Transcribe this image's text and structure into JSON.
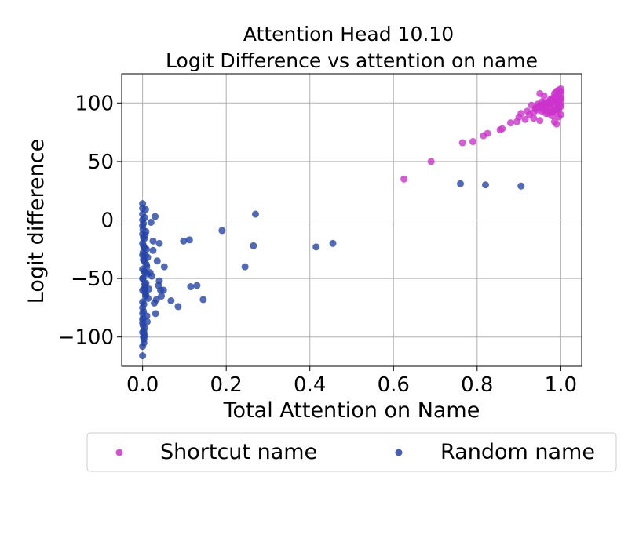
{
  "chart_data": {
    "type": "scatter",
    "title_line1": "Attention Head 10.10",
    "title_line2": "Logit Difference vs attention on name",
    "xlabel": "Total Attention on Name",
    "ylabel": "Logit difference",
    "xlim": [
      -0.05,
      1.05
    ],
    "ylim": [
      -125,
      125
    ],
    "xticks": [
      0.0,
      0.2,
      0.4,
      0.6,
      0.8,
      1.0
    ],
    "xtick_labels": [
      "0.0",
      "0.2",
      "0.4",
      "0.6",
      "0.8",
      "1.0"
    ],
    "yticks": [
      100,
      50,
      0,
      -50,
      -100
    ],
    "ytick_labels": [
      "100",
      "50",
      "0",
      "−50",
      "−100"
    ],
    "grid": true,
    "legend_position": "below-chart",
    "series": [
      {
        "name": "Shortcut name",
        "color": "#cc33cc",
        "x": [
          0.625,
          0.69,
          0.765,
          0.79,
          0.815,
          0.825,
          0.855,
          0.86,
          0.88,
          0.895,
          0.9,
          0.905,
          0.915,
          0.92,
          0.925,
          0.93,
          0.935,
          0.94,
          0.945,
          0.95,
          0.955,
          0.96,
          0.965,
          0.97,
          0.975,
          0.98,
          0.985,
          0.99,
          0.995,
          1.0,
          0.935,
          0.945,
          0.955,
          0.965,
          0.975,
          0.985,
          0.995,
          1.0,
          0.96,
          0.97,
          0.98,
          0.99,
          1.0,
          0.95,
          0.96,
          0.97,
          0.98,
          0.99,
          0.995,
          1.0,
          0.975,
          0.985,
          0.99,
          0.995,
          1.0,
          0.985,
          0.99,
          0.995,
          1.0,
          0.97,
          0.98,
          0.99,
          0.995,
          0.95,
          0.96,
          0.985,
          0.99,
          0.995,
          1.0,
          0.94,
          0.965,
          0.98,
          0.99,
          0.995,
          1.0,
          0.945,
          0.955,
          0.975
        ],
        "y": [
          35,
          50,
          66,
          67,
          72,
          74,
          77,
          78,
          83,
          84,
          88,
          91,
          86,
          93,
          90,
          98,
          87,
          95,
          99,
          85,
          101,
          94,
          97,
          100,
          103,
          104,
          105,
          106,
          108,
          110,
          92,
          96,
          93,
          95,
          96,
          97,
          98,
          99,
          100,
          101,
          102,
          103,
          104,
          98,
          99,
          100,
          101,
          102,
          105,
          107,
          93,
          94,
          95,
          96,
          97,
          84,
          82,
          88,
          90,
          91,
          92,
          93,
          94,
          108,
          106,
          108,
          110,
          111,
          112,
          96,
          91,
          89,
          100,
          102,
          103,
          94,
          97,
          99
        ]
      },
      {
        "name": "Random name",
        "color": "#2443a8",
        "x": [
          0.76,
          0.82,
          0.905,
          0.455,
          0.415,
          0.27,
          0.265,
          0.245,
          0.19,
          0.145,
          0.13,
          0.115,
          0.112,
          0.098,
          0.085,
          0.068,
          0.052,
          0.05,
          0.045,
          0.043,
          0.04,
          0.04,
          0.038,
          0.035,
          0.033,
          0.031,
          0.03,
          0.028,
          0.025,
          0.025,
          0.022,
          0.02,
          0.018,
          0.015,
          0.013,
          0.012,
          0.011,
          0.01,
          0.01,
          0.009,
          0.008,
          0.008,
          0.007,
          0.006,
          0.006,
          0.005,
          0.005,
          0.004,
          0.004,
          0.003,
          0.003,
          0.002,
          0.002,
          0.002,
          0.001,
          0.001,
          0.001,
          0.0,
          0.0,
          0.0,
          0.0,
          0.0,
          0.0,
          0.0,
          0.0,
          0.0,
          0.0,
          0.0,
          0.0,
          0.0,
          0.0,
          0.0,
          0.0,
          0.0,
          0.0,
          0.0,
          0.003,
          0.005,
          0.007,
          0.009,
          0.011,
          0.004,
          0.006,
          0.002,
          0.008,
          0.001,
          0.003,
          0.005,
          0.007,
          0.002,
          0.004,
          0.006,
          0.001,
          0.003,
          0.005,
          0.002
        ],
        "y": [
          31,
          30,
          29,
          -20,
          -23,
          5,
          -22,
          -40,
          -9,
          -68,
          -56,
          -57,
          -17,
          -18,
          -74,
          -69,
          -40,
          -60,
          -65,
          -60,
          -20,
          -52,
          -56,
          -35,
          -68,
          -80,
          3,
          -71,
          -26,
          -18,
          -48,
          -2,
          -45,
          -59,
          -67,
          -32,
          -87,
          -40,
          -82,
          -25,
          -54,
          -64,
          9,
          -13,
          -60,
          -92,
          2,
          -16,
          -44,
          -72,
          -105,
          -3,
          -34,
          -100,
          -8,
          -28,
          -50,
          -116,
          -108,
          -96,
          -88,
          -80,
          -70,
          -60,
          -50,
          -42,
          -30,
          -20,
          -12,
          -5,
          0,
          5,
          10,
          14,
          -75,
          -85,
          -95,
          -99,
          -30,
          -38,
          -46,
          -24,
          -62,
          -78,
          -10,
          -90,
          -102,
          -55,
          -65,
          -15,
          -35,
          -45,
          -84,
          -97,
          -58,
          -22
        ]
      }
    ]
  }
}
